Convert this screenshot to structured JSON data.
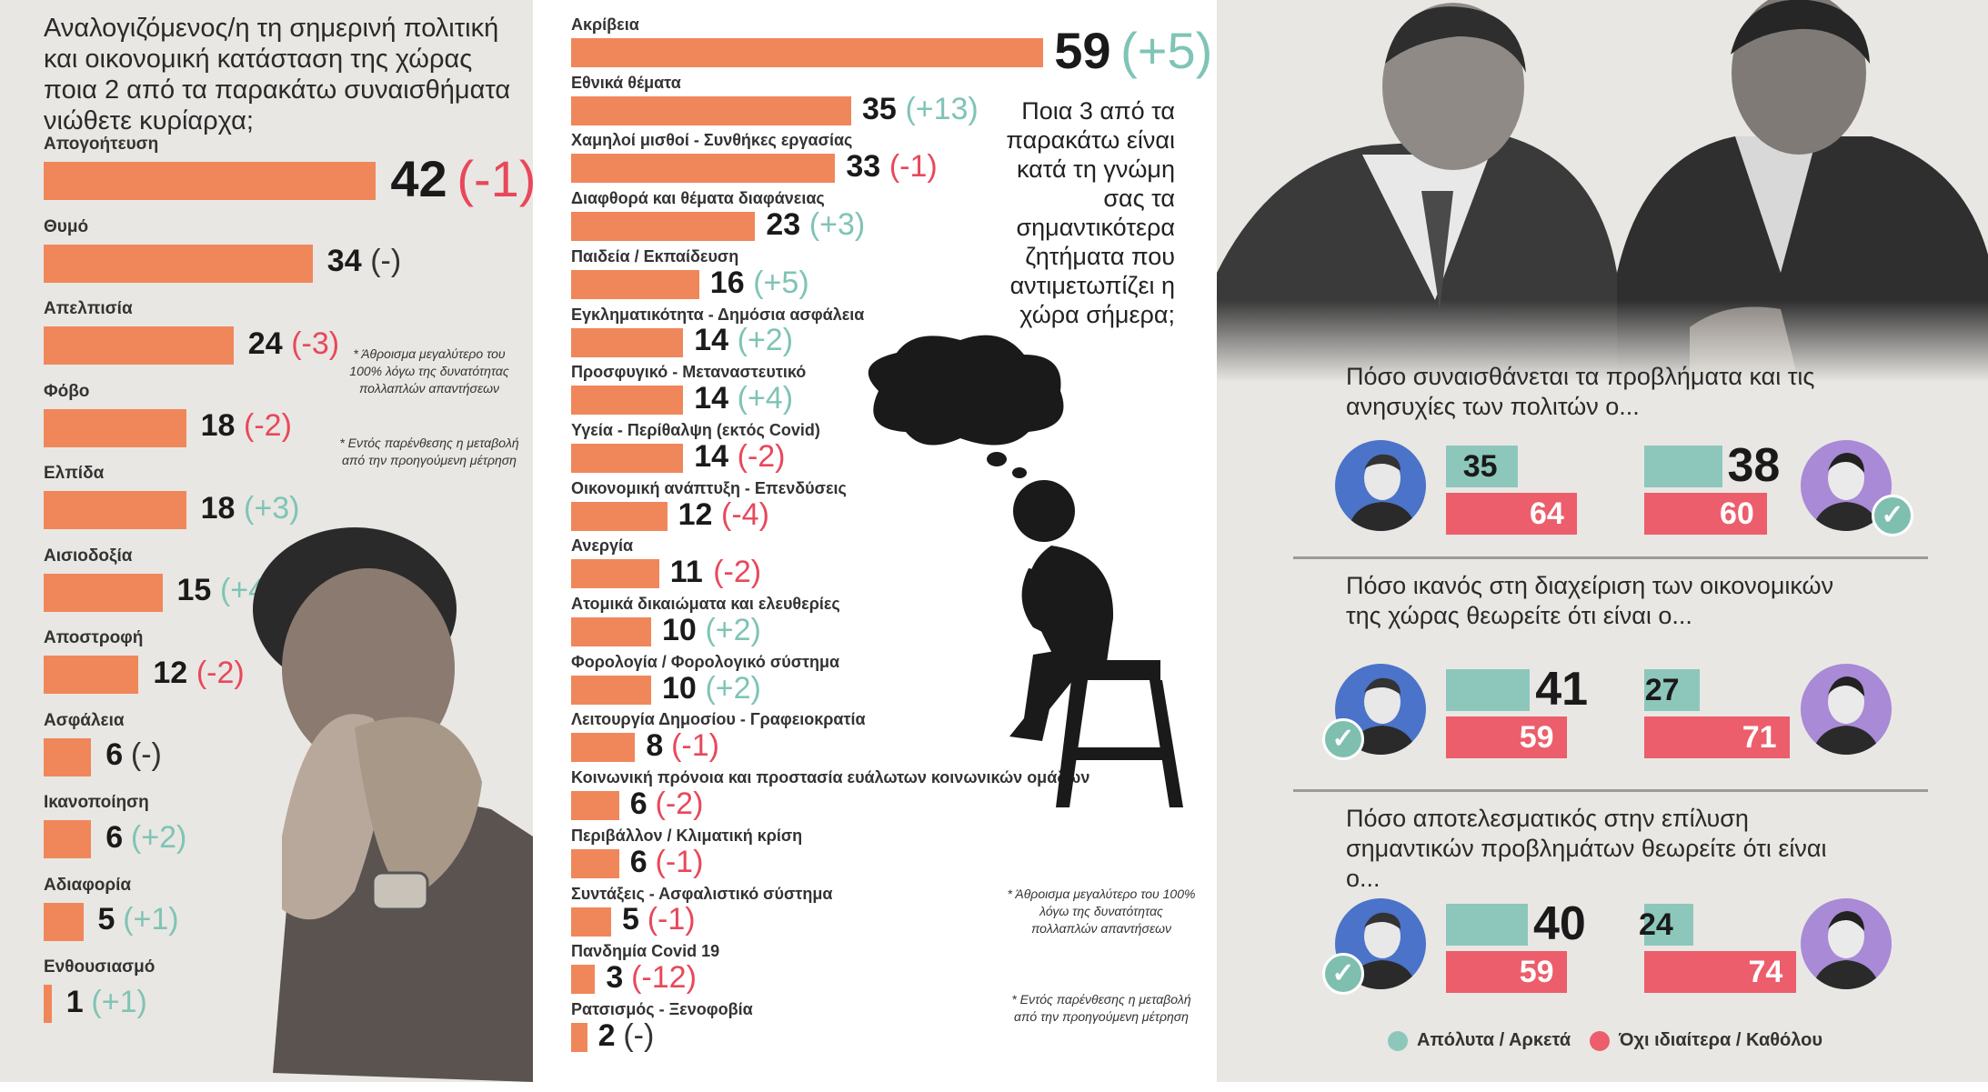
{
  "left": {
    "question": "Αναλογιζόμενος/η τη σημερινή πολιτική και οικονομική κατάσταση της χώρας ποια 2 από τα παρακάτω συναισθήματα νιώθετε κυρίαρχα;",
    "footnote1": "* Άθροισμα μεγαλύτερο του 100% λόγω της δυνατότητας πολλαπλών απαντήσεων",
    "footnote2": "* Εντός παρένθεσης η μεταβολή από την προηγούμενη μέτρηση"
  },
  "middle": {
    "question": "Ποια 3 από τα παρακάτω είναι κατά τη γνώμη σας τα σημαντικότερα ζητήματα που αντιμετωπίζει η χώρα σήμερα;",
    "footnote1": "* Άθροισμα μεγαλύτερο του 100% λόγω της δυνατότητας πολλαπλών απαντήσεων",
    "footnote2": "* Εντός παρένθεσης η μεταβολή από την προηγούμενη μέτρηση"
  },
  "right": {
    "legend_teal": "Απόλυτα / Αρκετά",
    "legend_red": "Όχι ιδιαίτερα / Καθόλου",
    "colors": {
      "teal": "#8dc7bb",
      "red": "#ec5e6b",
      "orange": "#f0875a"
    }
  },
  "chart_data": [
    {
      "type": "bar",
      "title": "Αναλογιζόμενος/η τη σημερινή πολιτική και οικονομική κατάσταση της χώρας ποια 2 από τα παρακάτω συναισθήματα νιώθετε κυρίαρχα;",
      "categories": [
        "Απογοήτευση",
        "Θυμό",
        "Απελπισία",
        "Φόβο",
        "Ελπίδα",
        "Αισιοδοξία",
        "Αποστροφή",
        "Ασφάλεια",
        "Ικανοποίηση",
        "Αδιαφορία",
        "Ενθουσιασμό"
      ],
      "values": [
        42,
        34,
        24,
        18,
        18,
        15,
        12,
        6,
        6,
        5,
        1
      ],
      "changes": [
        "(-1)",
        "(-)",
        "(-3)",
        "(-2)",
        "(+3)",
        "(+4)",
        "(-2)",
        "(-)",
        "(+2)",
        "(+1)",
        "(+1)"
      ]
    },
    {
      "type": "bar",
      "title": "Ποια 3 από τα παρακάτω είναι κατά τη γνώμη σας τα σημαντικότερα ζητήματα που αντιμετωπίζει η χώρα σήμερα;",
      "categories": [
        "Ακρίβεια",
        "Εθνικά θέματα",
        "Χαμηλοί μισθοί - Συνθήκες εργασίας",
        "Διαφθορά και θέματα διαφάνειας",
        "Παιδεία / Εκπαίδευση",
        "Εγκληματικότητα - Δημόσια ασφάλεια",
        "Προσφυγικό - Μεταναστευτικό",
        "Υγεία - Περίθαλψη (εκτός Covid)",
        "Οικονομική ανάπτυξη - Επενδύσεις",
        "Ανεργία",
        "Ατομικά δικαιώματα και ελευθερίες",
        "Φορολογία / Φορολογικό σύστημα",
        "Λειτουργία Δημοσίου - Γραφειοκρατία",
        "Κοινωνική πρόνοια και προστασία ευάλωτων κοινωνικών ομάδων",
        "Περιβάλλον / Κλιματική κρίση",
        "Συντάξεις - Ασφαλιστικό σύστημα",
        "Πανδημία Covid 19",
        "Ρατσισμός - Ξενοφοβία"
      ],
      "values": [
        59,
        35,
        33,
        23,
        16,
        14,
        14,
        14,
        12,
        11,
        10,
        10,
        8,
        6,
        6,
        5,
        3,
        2
      ],
      "changes": [
        "(+5)",
        "(+13)",
        "(-1)",
        "(+3)",
        "(+5)",
        "(+2)",
        "(+4)",
        "(-2)",
        "(-4)",
        "(-2)",
        "(+2)",
        "(+2)",
        "(-1)",
        "(-2)",
        "(-1)",
        "(-1)",
        "(-12)",
        "(-)"
      ]
    },
    {
      "type": "bar",
      "title": "Πόσο συναισθάνεται τα προβλήματα και τις ανησυχίες των πολιτών ο...",
      "series": [
        {
          "name": "Απόλυτα / Αρκετά",
          "values": [
            35,
            38
          ]
        },
        {
          "name": "Όχι ιδιαίτερα / Καθόλου",
          "values": [
            64,
            60
          ]
        }
      ]
    },
    {
      "type": "bar",
      "title": "Πόσο ικανός στη διαχείριση των οικονομικών της χώρας θεωρείτε ότι είναι ο...",
      "series": [
        {
          "name": "Απόλυτα / Αρκετά",
          "values": [
            41,
            27
          ]
        },
        {
          "name": "Όχι ιδιαίτερα / Καθόλου",
          "values": [
            59,
            71
          ]
        }
      ]
    },
    {
      "type": "bar",
      "title": "Πόσο αποτελεσματικός στην επίλυση σημαντικών προβλημάτων θεωρείτε ότι είναι ο...",
      "series": [
        {
          "name": "Απόλυτα / Αρκετά",
          "values": [
            40,
            24
          ]
        },
        {
          "name": "Όχι ιδιαίτερα / Καθόλου",
          "values": [
            59,
            74
          ]
        }
      ]
    }
  ]
}
